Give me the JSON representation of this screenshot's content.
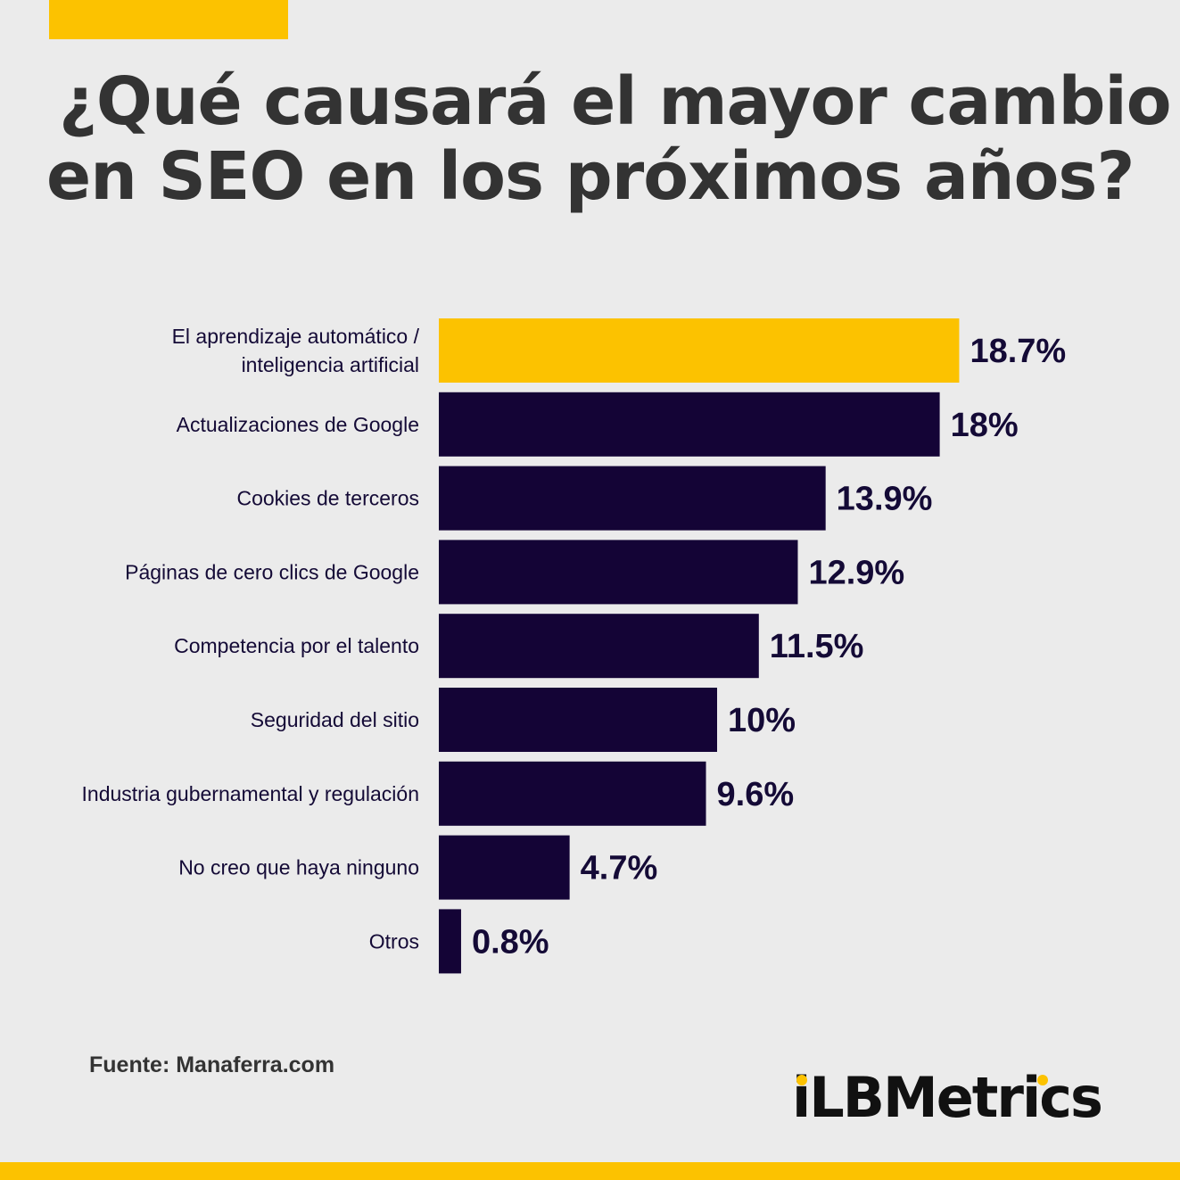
{
  "header": {
    "title_line1": "¿Qué causará el mayor cambio",
    "title_line2": "en SEO en los próximos años?"
  },
  "chart_data": {
    "type": "bar",
    "orientation": "horizontal",
    "categories": [
      [
        "El aprendizaje automático /",
        "inteligencia artificial"
      ],
      [
        "Actualizaciones de Google"
      ],
      [
        "Cookies de terceros"
      ],
      [
        "Páginas de cero clics de Google"
      ],
      [
        "Competencia por el talento"
      ],
      [
        "Seguridad del sitio"
      ],
      [
        "Industria gubernamental y regulación"
      ],
      [
        "No creo que haya ninguno"
      ],
      [
        "Otros"
      ]
    ],
    "values": [
      18.7,
      18,
      13.9,
      12.9,
      11.5,
      10,
      9.6,
      4.7,
      0.8
    ],
    "value_labels": [
      "18.7%",
      "18%",
      "13.9%",
      "12.9%",
      "11.5%",
      "10%",
      "9.6%",
      "4.7%",
      "0.8%"
    ],
    "highlight_index": 0,
    "colors": {
      "highlight": "#fcc200",
      "bar": "#140436"
    }
  },
  "footer": {
    "source": "Fuente: Manaferra.com",
    "logo": "iLBMetrics"
  }
}
